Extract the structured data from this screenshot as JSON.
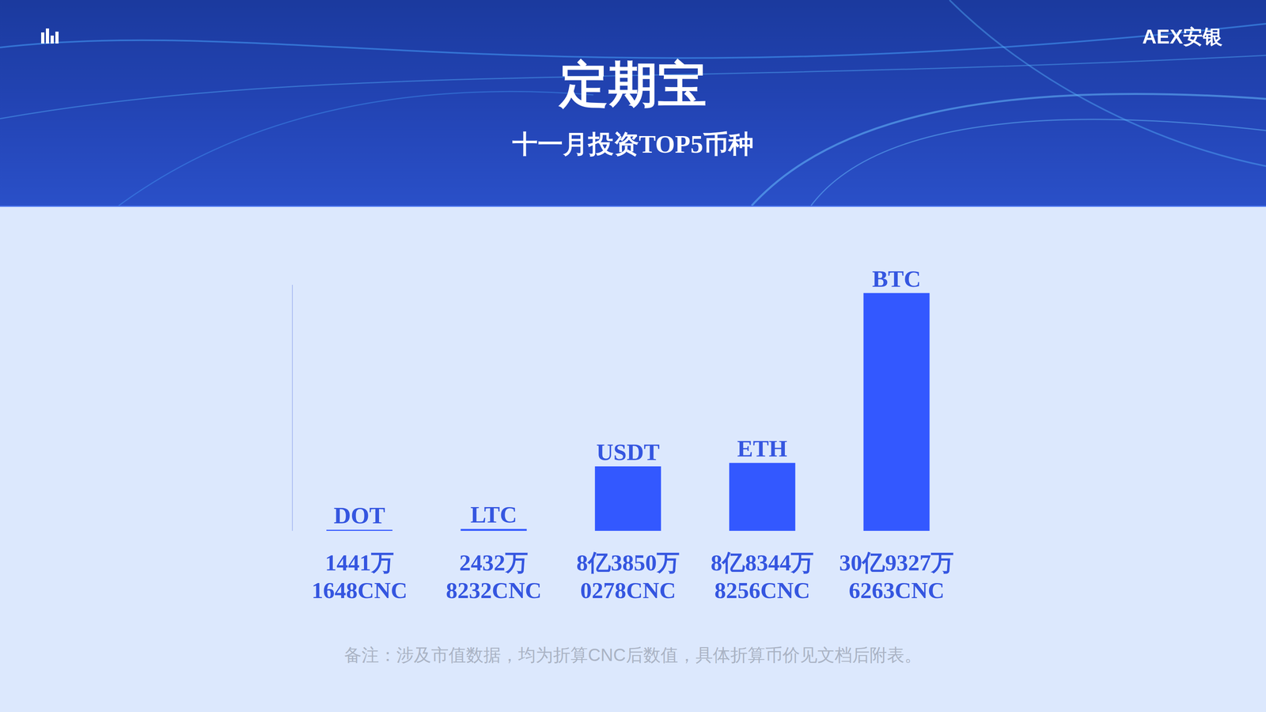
{
  "header": {
    "title": "定期宝",
    "subtitle": "十一月投资TOP5币种",
    "logo": "AEX安银"
  },
  "chart_data": {
    "type": "bar",
    "categories": [
      "DOT",
      "LTC",
      "USDT",
      "ETH",
      "BTC"
    ],
    "values": [
      14411648,
      24328232,
      838500278,
      883448256,
      3093276263
    ],
    "value_labels": [
      "1441万1648CNC",
      "2432万8232CNC",
      "8亿3850万0278CNC",
      "8亿8344万8256CNC",
      "30亿9327万6263CNC"
    ],
    "color": "#3358ff",
    "ylim": [
      0,
      3200000000
    ],
    "data_labels": true,
    "tick_labels": false,
    "grid": false
  },
  "note": "备注：涉及市值数据，均为折算CNC后数值，具体折算币价见文档后附表。"
}
